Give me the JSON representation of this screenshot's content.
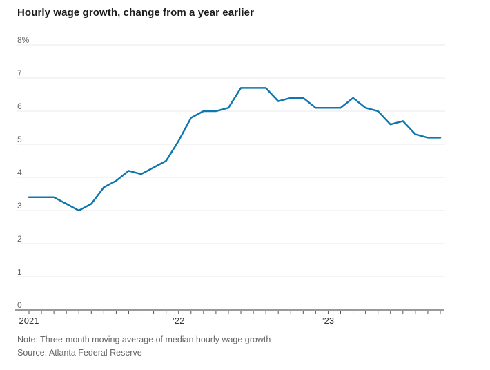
{
  "chart": {
    "title": "Hourly wage growth, change from a year earlier",
    "note": "Note: Three-month moving average of median hourly wage growth",
    "source": "Source: Atlanta Federal Reserve"
  },
  "chart_data": {
    "type": "line",
    "title": "Hourly wage growth, change from a year earlier",
    "series_name": "Median hourly wage growth, 3-month moving average",
    "unit": "percent",
    "x": [
      "Jan 2021",
      "Feb 2021",
      "Mar 2021",
      "Apr 2021",
      "May 2021",
      "Jun 2021",
      "Jul 2021",
      "Aug 2021",
      "Sep 2021",
      "Oct 2021",
      "Nov 2021",
      "Dec 2021",
      "Jan 2022",
      "Feb 2022",
      "Mar 2022",
      "Apr 2022",
      "May 2022",
      "Jun 2022",
      "Jul 2022",
      "Aug 2022",
      "Sep 2022",
      "Oct 2022",
      "Nov 2022",
      "Dec 2022",
      "Jan 2023",
      "Feb 2023",
      "Mar 2023",
      "Apr 2023",
      "May 2023",
      "Jun 2023",
      "Jul 2023",
      "Aug 2023",
      "Sep 2023",
      "Oct 2023"
    ],
    "values": [
      3.4,
      3.4,
      3.4,
      3.2,
      3.0,
      3.2,
      3.7,
      3.9,
      4.2,
      4.1,
      4.3,
      4.5,
      5.1,
      5.8,
      6.0,
      6.0,
      6.1,
      6.7,
      6.7,
      6.7,
      6.3,
      6.4,
      6.4,
      6.1,
      6.1,
      6.1,
      6.4,
      6.1,
      6.0,
      5.6,
      5.7,
      5.3,
      5.2,
      5.2
    ],
    "xlabel": "",
    "ylabel": "",
    "ylim": [
      0,
      8
    ],
    "y_ticks": [
      0,
      1,
      2,
      3,
      4,
      5,
      6,
      7,
      8
    ],
    "y_tick_labels": [
      "0",
      "1",
      "2",
      "3",
      "4",
      "5",
      "6",
      "7",
      "8%"
    ],
    "x_tick_labels": [
      {
        "index": 0,
        "label": "2021"
      },
      {
        "index": 12,
        "label": "’22"
      },
      {
        "index": 24,
        "label": "’23"
      }
    ],
    "grid": "horizontal",
    "legend": "none",
    "colors": {
      "line": "#0f77ad",
      "grid": "#e9e9e9",
      "axis": "#9a9a9a",
      "tick": "#555555",
      "y_label": "#666666",
      "x_label": "#333333",
      "title": "#1b1b1b",
      "note": "#666666",
      "background": "#ffffff"
    }
  }
}
